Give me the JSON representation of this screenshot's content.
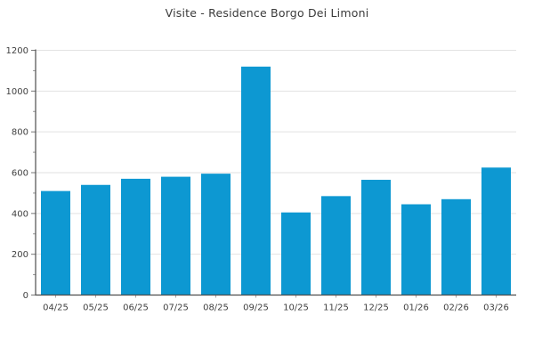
{
  "chart_data": {
    "type": "bar",
    "title": "Visite - Residence Borgo Dei Limoni",
    "categories": [
      "04/25",
      "05/25",
      "06/25",
      "07/25",
      "08/25",
      "09/25",
      "10/25",
      "11/25",
      "12/25",
      "01/26",
      "02/26",
      "03/26"
    ],
    "values": [
      510,
      540,
      570,
      580,
      595,
      1120,
      405,
      485,
      565,
      445,
      470,
      625
    ],
    "xlabel": "",
    "ylabel": "",
    "ylim": [
      0,
      1200
    ],
    "y_major_ticks": [
      0,
      200,
      400,
      600,
      800,
      1000,
      1200
    ],
    "y_minor_step": 100,
    "grid": true,
    "legend": false
  },
  "theme": {
    "bar_color": "#0d98d2",
    "axis_color": "#4d4d4d",
    "major_tick_color": "#777777",
    "minor_tick_color": "#999999",
    "x_tick_color": "#aaaaaa",
    "grid_color": "#e2e2e2",
    "text_color": "#3f3f3f",
    "title_color": "#3a3a3a",
    "background": "#ffffff"
  }
}
